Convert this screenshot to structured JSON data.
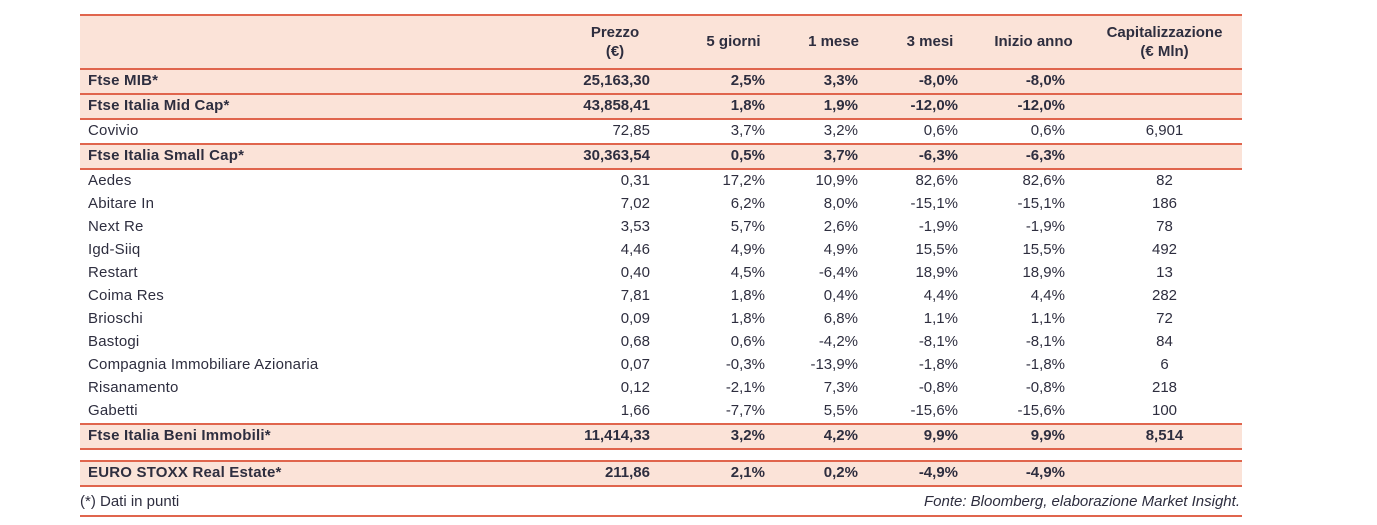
{
  "colors": {
    "accent": "#e0654d",
    "peach": "#fbe3d8",
    "ink": "#2e2e3f"
  },
  "table": {
    "header": {
      "name": "",
      "prezzo": [
        "Prezzo",
        "(€)"
      ],
      "five_days": "5 giorni",
      "one_month": "1 mese",
      "three_months": "3 mesi",
      "ytd": "Inizio anno",
      "cap": [
        "Capitalizzazione",
        "(€ Mln)"
      ]
    },
    "rows": [
      {
        "type": "index",
        "name": "Ftse MIB*",
        "prezzo": "25,163,30",
        "d5": "2,5%",
        "m1": "3,3%",
        "m3": "-8,0%",
        "ytd": "-8,0%",
        "cap": ""
      },
      {
        "type": "index",
        "name": "Ftse Italia Mid Cap*",
        "prezzo": "43,858,41",
        "d5": "1,8%",
        "m1": "1,9%",
        "m3": "-12,0%",
        "ytd": "-12,0%",
        "cap": ""
      },
      {
        "type": "stock",
        "name": "Covivio",
        "prezzo": "72,85",
        "d5": "3,7%",
        "m1": "3,2%",
        "m3": "0,6%",
        "ytd": "0,6%",
        "cap": "6,901"
      },
      {
        "type": "index",
        "name": "Ftse Italia Small Cap*",
        "prezzo": "30,363,54",
        "d5": "0,5%",
        "m1": "3,7%",
        "m3": "-6,3%",
        "ytd": "-6,3%",
        "cap": ""
      },
      {
        "type": "stock",
        "name": "Aedes",
        "prezzo": "0,31",
        "d5": "17,2%",
        "m1": "10,9%",
        "m3": "82,6%",
        "ytd": "82,6%",
        "cap": "82"
      },
      {
        "type": "stock",
        "name": "Abitare In",
        "prezzo": "7,02",
        "d5": "6,2%",
        "m1": "8,0%",
        "m3": "-15,1%",
        "ytd": "-15,1%",
        "cap": "186"
      },
      {
        "type": "stock",
        "name": "Next Re",
        "prezzo": "3,53",
        "d5": "5,7%",
        "m1": "2,6%",
        "m3": "-1,9%",
        "ytd": "-1,9%",
        "cap": "78"
      },
      {
        "type": "stock",
        "name": "Igd-Siiq",
        "prezzo": "4,46",
        "d5": "4,9%",
        "m1": "4,9%",
        "m3": "15,5%",
        "ytd": "15,5%",
        "cap": "492"
      },
      {
        "type": "stock",
        "name": "Restart",
        "prezzo": "0,40",
        "d5": "4,5%",
        "m1": "-6,4%",
        "m3": "18,9%",
        "ytd": "18,9%",
        "cap": "13"
      },
      {
        "type": "stock",
        "name": "Coima Res",
        "prezzo": "7,81",
        "d5": "1,8%",
        "m1": "0,4%",
        "m3": "4,4%",
        "ytd": "4,4%",
        "cap": "282"
      },
      {
        "type": "stock",
        "name": "Brioschi",
        "prezzo": "0,09",
        "d5": "1,8%",
        "m1": "6,8%",
        "m3": "1,1%",
        "ytd": "1,1%",
        "cap": "72"
      },
      {
        "type": "stock",
        "name": "Bastogi",
        "prezzo": "0,68",
        "d5": "0,6%",
        "m1": "-4,2%",
        "m3": "-8,1%",
        "ytd": "-8,1%",
        "cap": "84"
      },
      {
        "type": "stock",
        "name": "Compagnia Immobiliare Azionaria",
        "prezzo": "0,07",
        "d5": "-0,3%",
        "m1": "-13,9%",
        "m3": "-1,8%",
        "ytd": "-1,8%",
        "cap": "6"
      },
      {
        "type": "stock",
        "name": "Risanamento",
        "prezzo": "0,12",
        "d5": "-2,1%",
        "m1": "7,3%",
        "m3": "-0,8%",
        "ytd": "-0,8%",
        "cap": "218"
      },
      {
        "type": "stock",
        "name": "Gabetti",
        "prezzo": "1,66",
        "d5": "-7,7%",
        "m1": "5,5%",
        "m3": "-15,6%",
        "ytd": "-15,6%",
        "cap": "100"
      },
      {
        "type": "index",
        "name": "Ftse Italia Beni Immobili*",
        "prezzo": "11,414,33",
        "d5": "3,2%",
        "m1": "4,2%",
        "m3": "9,9%",
        "ytd": "9,9%",
        "cap": "8,514"
      },
      {
        "spacer": true
      },
      {
        "type": "index",
        "name": "EURO STOXX Real Estate*",
        "prezzo": "211,86",
        "d5": "2,1%",
        "m1": "0,2%",
        "m3": "-4,9%",
        "ytd": "-4,9%",
        "cap": ""
      }
    ]
  },
  "footer": {
    "note": "(*) Dati in punti",
    "source": "Fonte: Bloomberg, elaborazione Market Insight."
  }
}
